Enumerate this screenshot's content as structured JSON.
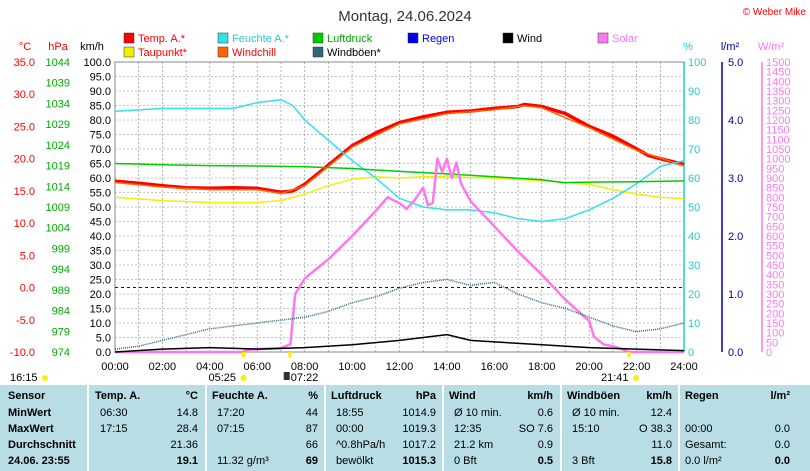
{
  "title": "Montag, 24.06.2024",
  "credit": "© Weber Mike",
  "colors": {
    "temp": "#ff0000",
    "feuchte": "#33e0ee",
    "luftdruck": "#00cc00",
    "regen": "#0000ee",
    "wind": "#000000",
    "solar": "#ff77ee",
    "taupunkt": "#f0f000",
    "windchill": "#ff6600",
    "windboeen": "#336677",
    "panel": "#b9dde5"
  },
  "legend": [
    {
      "label": "Temp. A.*",
      "color": "#ff0000",
      "text_color": "#ff0000"
    },
    {
      "label": "Feuchte A.*",
      "color": "#33e0ee",
      "text_color": "#22cccc"
    },
    {
      "label": "Luftdruck",
      "color": "#00cc00",
      "text_color": "#00aa00"
    },
    {
      "label": "Regen",
      "color": "#0000ee",
      "text_color": "#0000ee"
    },
    {
      "label": "Wind",
      "color": "#000000",
      "text_color": "#000000"
    },
    {
      "label": "Solar",
      "color": "#ff77ee",
      "text_color": "#ff77ee"
    },
    {
      "label": "Taupunkt*",
      "color": "#f0f000",
      "text_color": "#ff0000"
    },
    {
      "label": "Windchill",
      "color": "#ff6600",
      "text_color": "#ff0000"
    },
    {
      "label": "Windböen*",
      "color": "#336677",
      "text_color": "#000000"
    }
  ],
  "chart_data": {
    "type": "line",
    "title": "Montag, 24.06.2024",
    "x_labels": [
      "00:00",
      "02:00",
      "04:00",
      "06:00",
      "08:00",
      "10:00",
      "12:00",
      "14:00",
      "16:00",
      "18:00",
      "20:00",
      "22:00",
      "24:00"
    ],
    "axes": {
      "temp": {
        "unit": "°C",
        "min": -10,
        "max": 35,
        "step": 5,
        "color": "#ff0000"
      },
      "pressure": {
        "unit": "hPa",
        "min": 974,
        "max": 1044,
        "step": 5,
        "color": "#00aa00"
      },
      "wind": {
        "unit": "km/h",
        "min": 0,
        "max": 100,
        "step": 5,
        "color": "#000000"
      },
      "humidity": {
        "unit": "%",
        "min": 0,
        "max": 100,
        "step": 10,
        "color": "#22cccc"
      },
      "rain": {
        "unit": "l/m²",
        "min": 0,
        "max": 5,
        "step": 1,
        "color": "#0000aa"
      },
      "solar": {
        "unit": "W/m²",
        "min": 0,
        "max": 1500,
        "step": 50,
        "color": "#ff77ee"
      }
    },
    "grid": true,
    "series": [
      {
        "name": "Temp. A.*",
        "axis": "temp",
        "color": "#ff0000",
        "points": [
          [
            0,
            16.5
          ],
          [
            1,
            16.2
          ],
          [
            2,
            15.8
          ],
          [
            3,
            15.5
          ],
          [
            4,
            15.4
          ],
          [
            5,
            15.5
          ],
          [
            6,
            15.4
          ],
          [
            7,
            14.8
          ],
          [
            7.5,
            15.0
          ],
          [
            8,
            16.0
          ],
          [
            9,
            19.0
          ],
          [
            10,
            22.0
          ],
          [
            11,
            24.0
          ],
          [
            12,
            25.6
          ],
          [
            13,
            26.5
          ],
          [
            14,
            27.2
          ],
          [
            15,
            27.4
          ],
          [
            16,
            27.8
          ],
          [
            17,
            28.1
          ],
          [
            17.25,
            28.4
          ],
          [
            18,
            28.1
          ],
          [
            19,
            27.0
          ],
          [
            20,
            25.0
          ],
          [
            21,
            23.5
          ],
          [
            22,
            21.5
          ],
          [
            22.5,
            20.5
          ],
          [
            23,
            20.0
          ],
          [
            24,
            19.1
          ]
        ]
      },
      {
        "name": "Windchill",
        "axis": "temp",
        "color": "#ff6600",
        "points": [
          [
            0,
            16.3
          ],
          [
            2,
            15.6
          ],
          [
            4,
            15.2
          ],
          [
            6,
            15.2
          ],
          [
            7,
            14.6
          ],
          [
            8,
            15.8
          ],
          [
            10,
            21.8
          ],
          [
            12,
            25.4
          ],
          [
            14,
            27.0
          ],
          [
            16,
            27.6
          ],
          [
            17.25,
            28.2
          ],
          [
            18,
            27.9
          ],
          [
            20,
            24.8
          ],
          [
            22,
            21.3
          ],
          [
            24,
            18.9
          ]
        ]
      },
      {
        "name": "Taupunkt*",
        "axis": "temp",
        "color": "#f0f000",
        "points": [
          [
            0,
            14.0
          ],
          [
            2,
            13.5
          ],
          [
            4,
            13.2
          ],
          [
            6,
            13.2
          ],
          [
            7,
            13.5
          ],
          [
            8,
            14.5
          ],
          [
            9,
            15.8
          ],
          [
            10,
            16.8
          ],
          [
            11,
            17.2
          ],
          [
            12,
            17.0
          ],
          [
            13,
            17.2
          ],
          [
            14,
            17.2
          ],
          [
            16,
            17.0
          ],
          [
            18,
            16.6
          ],
          [
            20,
            16.0
          ],
          [
            21,
            15.2
          ],
          [
            22,
            14.5
          ],
          [
            23,
            14.0
          ],
          [
            24,
            13.8
          ]
        ]
      },
      {
        "name": "Feuchte A.*",
        "axis": "humidity",
        "color": "#33e0ee",
        "points": [
          [
            0,
            83
          ],
          [
            2,
            84
          ],
          [
            4,
            84
          ],
          [
            5,
            84
          ],
          [
            6,
            86
          ],
          [
            7,
            87
          ],
          [
            7.5,
            85
          ],
          [
            8,
            80
          ],
          [
            9,
            73
          ],
          [
            10,
            66
          ],
          [
            11,
            60
          ],
          [
            12,
            53
          ],
          [
            13,
            50
          ],
          [
            14,
            49
          ],
          [
            15,
            49
          ],
          [
            16,
            48
          ],
          [
            17,
            46
          ],
          [
            18,
            45
          ],
          [
            19,
            46
          ],
          [
            20,
            49
          ],
          [
            21,
            53
          ],
          [
            22,
            58
          ],
          [
            23,
            64
          ],
          [
            24,
            66
          ]
        ]
      },
      {
        "name": "Luftdruck",
        "axis": "pressure",
        "color": "#00cc00",
        "points": [
          [
            0,
            1019.5
          ],
          [
            2,
            1019.2
          ],
          [
            4,
            1019.0
          ],
          [
            6,
            1018.9
          ],
          [
            8,
            1018.7
          ],
          [
            10,
            1018.3
          ],
          [
            12,
            1017.6
          ],
          [
            14,
            1017.0
          ],
          [
            16,
            1016.3
          ],
          [
            18,
            1015.6
          ],
          [
            18.92,
            1014.9
          ],
          [
            20,
            1015.0
          ],
          [
            22,
            1015.1
          ],
          [
            24,
            1015.3
          ]
        ]
      },
      {
        "name": "Solar",
        "axis": "solar",
        "color": "#ff77ee",
        "points": [
          [
            0,
            0
          ],
          [
            5.4,
            0
          ],
          [
            5.5,
            10
          ],
          [
            6,
            15
          ],
          [
            7,
            20
          ],
          [
            7.4,
            40
          ],
          [
            7.6,
            300
          ],
          [
            8,
            380
          ],
          [
            9,
            480
          ],
          [
            10,
            600
          ],
          [
            11,
            730
          ],
          [
            11.5,
            800
          ],
          [
            12,
            770
          ],
          [
            12.3,
            740
          ],
          [
            12.6,
            780
          ],
          [
            13,
            850
          ],
          [
            13.2,
            760
          ],
          [
            13.4,
            770
          ],
          [
            13.6,
            1000
          ],
          [
            13.8,
            930
          ],
          [
            14,
            1000
          ],
          [
            14.2,
            900
          ],
          [
            14.4,
            980
          ],
          [
            14.6,
            870
          ],
          [
            15,
            780
          ],
          [
            16,
            650
          ],
          [
            17,
            520
          ],
          [
            18,
            400
          ],
          [
            19,
            270
          ],
          [
            20,
            160
          ],
          [
            20.2,
            80
          ],
          [
            20.6,
            40
          ],
          [
            21,
            30
          ],
          [
            21.5,
            10
          ],
          [
            21.68,
            0
          ],
          [
            24,
            0
          ]
        ]
      },
      {
        "name": "Windböen*",
        "axis": "wind",
        "color": "#336677",
        "dotted": true,
        "points": [
          [
            0,
            1
          ],
          [
            1,
            2
          ],
          [
            2,
            4
          ],
          [
            3,
            6
          ],
          [
            4,
            8
          ],
          [
            5,
            9
          ],
          [
            6,
            10
          ],
          [
            7,
            11
          ],
          [
            8,
            12
          ],
          [
            9,
            14
          ],
          [
            10,
            17
          ],
          [
            11,
            19
          ],
          [
            12,
            22
          ],
          [
            13,
            24
          ],
          [
            14,
            25
          ],
          [
            15,
            23
          ],
          [
            16,
            24
          ],
          [
            17,
            20
          ],
          [
            18,
            17
          ],
          [
            19,
            15
          ],
          [
            20,
            12
          ],
          [
            21,
            9
          ],
          [
            22,
            7
          ],
          [
            23,
            8
          ],
          [
            24,
            10
          ]
        ]
      },
      {
        "name": "Wind",
        "axis": "wind",
        "color": "#000000",
        "points": [
          [
            0,
            0
          ],
          [
            2,
            1
          ],
          [
            4,
            1.5
          ],
          [
            6,
            1
          ],
          [
            8,
            1.5
          ],
          [
            10,
            2.5
          ],
          [
            12,
            4
          ],
          [
            13,
            5
          ],
          [
            14,
            6
          ],
          [
            15,
            4
          ],
          [
            16,
            3.5
          ],
          [
            18,
            2.5
          ],
          [
            20,
            1.5
          ],
          [
            22,
            1
          ],
          [
            24,
            0.5
          ]
        ]
      }
    ],
    "reference_lines": [
      {
        "axis": "temp",
        "value": 0,
        "color": "#0000ee",
        "style": "dashed"
      }
    ],
    "markers": [
      {
        "label": "16:15",
        "hour": 16.25,
        "row": "top-left"
      },
      {
        "label": "05:25",
        "hour": 5.42,
        "row": "sunrise"
      },
      {
        "label": "07:22",
        "hour": 7.37,
        "row": "moon"
      },
      {
        "label": "21:41",
        "hour": 21.68,
        "row": "sunset"
      }
    ]
  },
  "stats_table": {
    "headers": {
      "sensor": "Sensor",
      "temp": "Temp. A.",
      "temp_unit": "°C",
      "feuchte": "Feuchte A.",
      "feuchte_unit": "%",
      "luftdruck": "Luftdruck",
      "luftdruck_unit": "hPa",
      "wind": "Wind",
      "wind_unit": "km/h",
      "windboeen": "Windböen",
      "windboeen_unit": "km/h",
      "regen": "Regen",
      "regen_unit": "l/m²"
    },
    "rows": [
      {
        "label": "MinWert",
        "temp_time": "06:30",
        "temp_val": "14.8",
        "feuchte_time": "17:20",
        "feuchte_val": "44",
        "luft_time": "18:55",
        "luft_val": "1014.9",
        "wind_desc": "Ø 10 min.",
        "wind_val": "0.6",
        "boeen_desc": "Ø 10 min.",
        "boeen_val": "12.4",
        "regen_desc": "",
        "regen_val": ""
      },
      {
        "label": "MaxWert",
        "temp_time": "17:15",
        "temp_val": "28.4",
        "feuchte_time": "07:15",
        "feuchte_val": "87",
        "luft_time": "00:00",
        "luft_val": "1019.3",
        "wind_desc": "12:35",
        "wind_val": "SO 7.6",
        "boeen_desc": "15:10",
        "boeen_val": "O 38.3",
        "regen_desc": "00:00",
        "regen_val": "0.0"
      },
      {
        "label": "Durchschnitt",
        "temp_time": "",
        "temp_val": "21.36",
        "feuchte_time": "",
        "feuchte_val": "66",
        "luft_time": "^0.8hPa/h",
        "luft_val": "1017.2",
        "wind_desc": "21.2 km",
        "wind_val": "0.9",
        "boeen_desc": "",
        "boeen_val": "11.0",
        "regen_desc": "Gesamt:",
        "regen_val": "0.0"
      }
    ],
    "current": {
      "label": "24.06. 23:55",
      "temp_val": "19.1",
      "feuchte_time": "11.32 g/m³",
      "feuchte_val": "69",
      "luft_time": "bewölkt",
      "luft_val": "1015.3",
      "wind_desc": "0 Bft",
      "wind_val": "0.5",
      "boeen_desc": "3 Bft",
      "boeen_val": "15.8",
      "regen_desc": "0.0 l/m²",
      "regen_val": "0.0"
    }
  }
}
